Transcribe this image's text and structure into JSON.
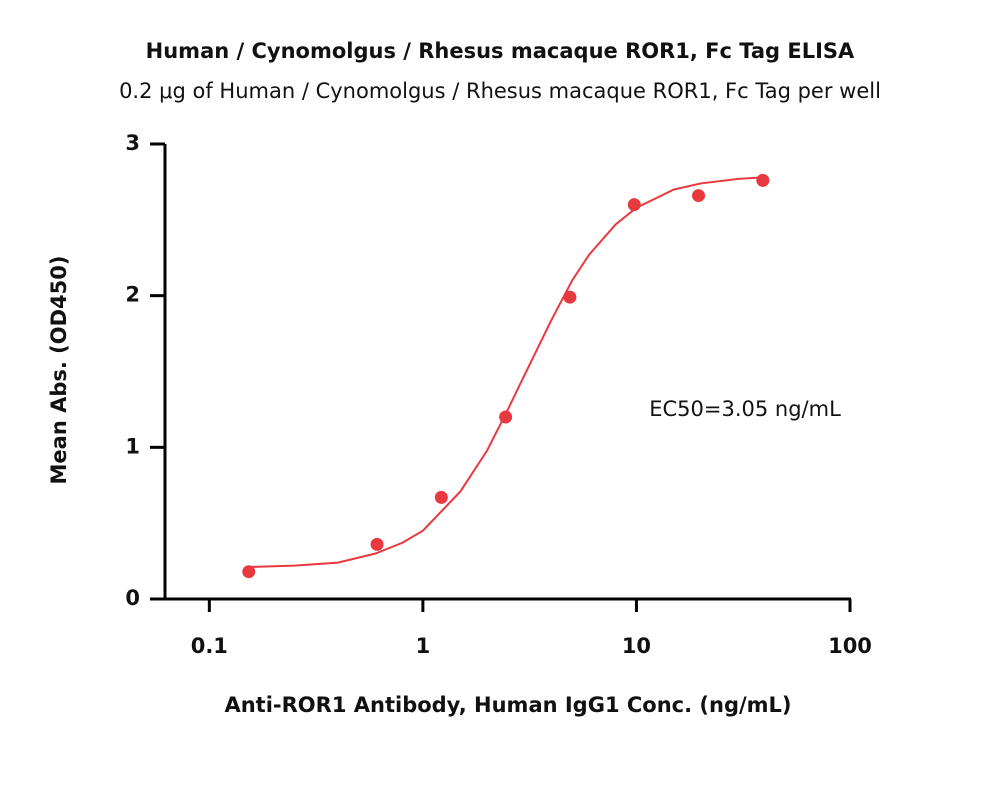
{
  "chart_data": {
    "type": "scatter",
    "title": "Human / Cynomolgus / Rhesus macaque ROR1, Fc Tag ELISA",
    "subtitle": "0.2 μg of Human / Cynomolgus / Rhesus macaque ROR1, Fc Tag per well",
    "x_label": "Anti-ROR1 Antibody, Human IgG1 Conc. (ng/mL)",
    "y_label": "Mean Abs. (OD450)",
    "annotation": "EC50=3.05 ng/mL",
    "x_log": true,
    "xlim": [
      0.062,
      100
    ],
    "xticks": [
      0.1,
      1,
      10,
      100
    ],
    "ylim": [
      0,
      3
    ],
    "yticks": [
      0,
      1,
      2,
      3
    ],
    "points": {
      "color": "#e8393f",
      "x": [
        0.153,
        0.61,
        1.22,
        2.44,
        4.88,
        9.77,
        19.53,
        39.06
      ],
      "values": [
        0.18,
        0.36,
        0.67,
        1.2,
        1.99,
        2.6,
        2.66,
        2.76
      ]
    },
    "curve": {
      "color": "#e8393f",
      "x": [
        0.15,
        0.25,
        0.4,
        0.6,
        0.8,
        1,
        1.5,
        2,
        2.5,
        3,
        4,
        5,
        6,
        8,
        10,
        15,
        20,
        30,
        39
      ],
      "values": [
        0.21,
        0.22,
        0.24,
        0.3,
        0.37,
        0.45,
        0.71,
        0.98,
        1.25,
        1.48,
        1.84,
        2.1,
        2.27,
        2.47,
        2.58,
        2.7,
        2.74,
        2.77,
        2.78
      ]
    }
  }
}
